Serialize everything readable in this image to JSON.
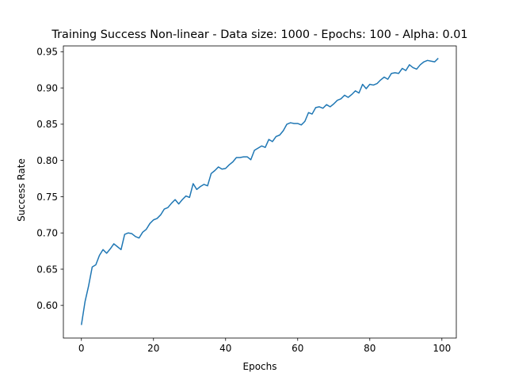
{
  "chart_data": {
    "type": "line",
    "title": "Training Success Non-linear - Data size: 1000 - Epochs: 100 - Alpha: 0.01",
    "xlabel": "Epochs",
    "ylabel": "Success Rate",
    "xlim": [
      -5,
      104
    ],
    "ylim": [
      0.555,
      0.958
    ],
    "xticks": [
      0,
      20,
      40,
      60,
      80,
      100
    ],
    "yticks": [
      0.6,
      0.65,
      0.7,
      0.75,
      0.8,
      0.85,
      0.9,
      0.95
    ],
    "xtick_labels": [
      "0",
      "20",
      "40",
      "60",
      "80",
      "100"
    ],
    "ytick_labels": [
      "0.60",
      "0.65",
      "0.70",
      "0.75",
      "0.80",
      "0.85",
      "0.90",
      "0.95"
    ],
    "grid": false,
    "legend": "none",
    "line_color": "#1f77b4",
    "series": [
      {
        "values": [
          0.573,
          0.605,
          0.627,
          0.653,
          0.656,
          0.669,
          0.677,
          0.672,
          0.678,
          0.685,
          0.681,
          0.677,
          0.698,
          0.7,
          0.699,
          0.695,
          0.693,
          0.701,
          0.705,
          0.713,
          0.718,
          0.72,
          0.725,
          0.733,
          0.735,
          0.741,
          0.746,
          0.74,
          0.746,
          0.751,
          0.749,
          0.768,
          0.76,
          0.764,
          0.767,
          0.765,
          0.782,
          0.786,
          0.791,
          0.788,
          0.789,
          0.794,
          0.798,
          0.804,
          0.804,
          0.805,
          0.805,
          0.801,
          0.814,
          0.817,
          0.82,
          0.818,
          0.829,
          0.826,
          0.833,
          0.835,
          0.841,
          0.85,
          0.852,
          0.851,
          0.851,
          0.849,
          0.854,
          0.866,
          0.864,
          0.873,
          0.874,
          0.872,
          0.877,
          0.874,
          0.878,
          0.883,
          0.885,
          0.89,
          0.887,
          0.891,
          0.896,
          0.893,
          0.905,
          0.899,
          0.905,
          0.904,
          0.906,
          0.911,
          0.915,
          0.912,
          0.92,
          0.921,
          0.92,
          0.927,
          0.924,
          0.932,
          0.928,
          0.926,
          0.932,
          0.936,
          0.938,
          0.937,
          0.936,
          0.941
        ]
      }
    ]
  }
}
